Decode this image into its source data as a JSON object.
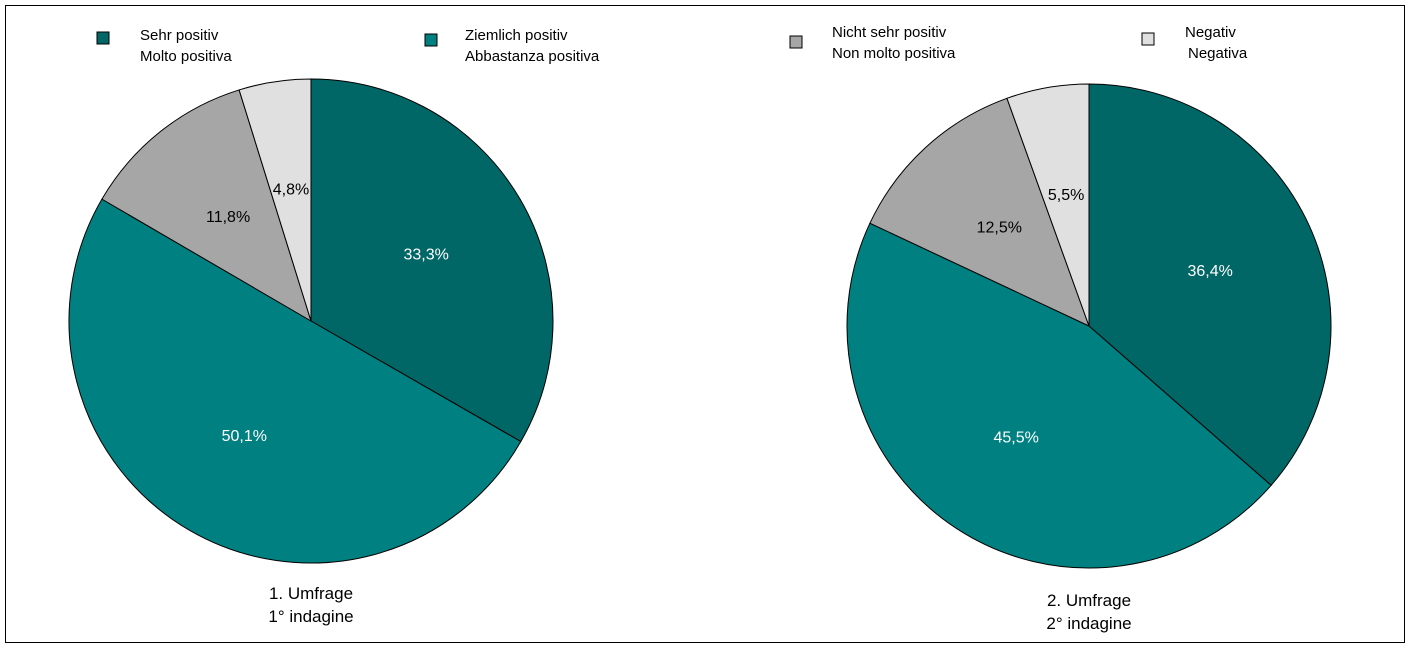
{
  "legend": [
    {
      "line1": "Sehr positiv",
      "line2": "Molto positiva",
      "color": "#006666"
    },
    {
      "line1": "Ziemlich positiv",
      "line2": "Abbastanza positiva",
      "color": "#008080"
    },
    {
      "line1": "Nicht sehr positiv",
      "line2": "Non molto positiva",
      "color": "#a6a6a6"
    },
    {
      "line1": "Negativ",
      "line2": "Negativa",
      "color": "#e0e0e0"
    }
  ],
  "chart_data": [
    {
      "type": "pie",
      "caption_line1": "1. Umfrage",
      "caption_line2": "1° indagine",
      "slices": [
        {
          "label": "33,3%",
          "value": 33.3
        },
        {
          "label": "50,1%",
          "value": 50.1
        },
        {
          "label": "11,8%",
          "value": 11.8
        },
        {
          "label": "4,8%",
          "value": 4.8
        }
      ]
    },
    {
      "type": "pie",
      "caption_line1": "2. Umfrage",
      "caption_line2": "2° indagine",
      "slices": [
        {
          "label": "36,4%",
          "value": 36.4
        },
        {
          "label": "45,5%",
          "value": 45.5
        },
        {
          "label": "12,5%",
          "value": 12.5
        },
        {
          "label": "5,5%",
          "value": 5.5
        }
      ]
    }
  ]
}
